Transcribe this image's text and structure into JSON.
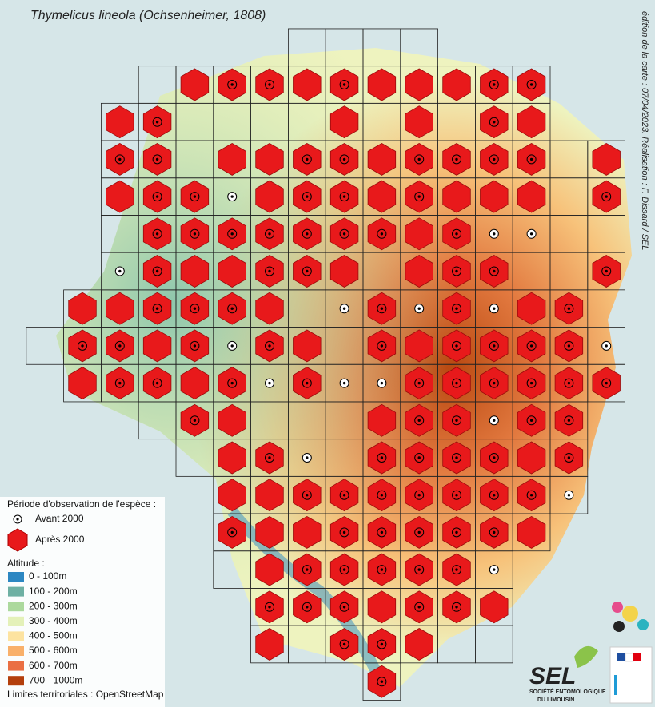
{
  "header": {
    "title": "Thymelicus lineola (Ochsenheimer, 1808)",
    "credit": "édition de la carte : 07/04/2023. Réalisation : F. Dissard / SEL"
  },
  "legend": {
    "period_title": "Période d'observation de l'espèce :",
    "before": "Avant 2000",
    "after": "Après 2000",
    "altitude_title": "Altitude :",
    "altitude": [
      {
        "label": "0 - 100m",
        "color": "#2c87c2"
      },
      {
        "label": "100 - 200m",
        "color": "#6eb0a3"
      },
      {
        "label": "200 - 300m",
        "color": "#acd99d"
      },
      {
        "label": "300 - 400m",
        "color": "#e4f1b9"
      },
      {
        "label": "400 - 500m",
        "color": "#fde3a0"
      },
      {
        "label": "500 - 600m",
        "color": "#f9b06a"
      },
      {
        "label": "600 - 700m",
        "color": "#ea6f43"
      },
      {
        "label": "700 - 1000m",
        "color": "#b43f0c"
      }
    ],
    "limits": "Limites territoriales : OpenStreetMap"
  },
  "logo": {
    "name": "SEL",
    "subtitle_1": "SOCIÉTÉ ENTOMOLOGIQUE",
    "subtitle_2": "DU LIMOUSIN"
  }
}
